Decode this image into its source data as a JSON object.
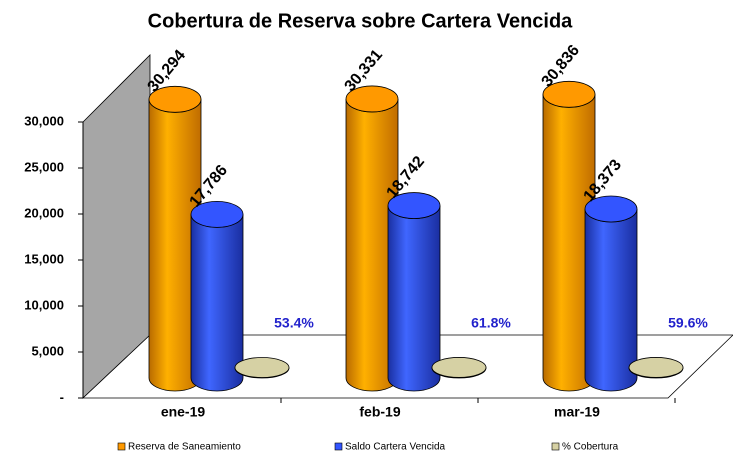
{
  "chart_data": {
    "type": "bar3d",
    "title": "Cobertura de Reserva sobre Cartera Vencida",
    "categories": [
      "ene-19",
      "feb-19",
      "mar-19"
    ],
    "series": [
      {
        "name": "Reserva de Saneamiento",
        "color": "#ff9900",
        "values": [
          30294,
          30331,
          30836
        ],
        "value_labels": [
          "30,294",
          "30,331",
          "30,836"
        ]
      },
      {
        "name": "Saldo Cartera Vencida",
        "color": "#3355ff",
        "values": [
          17786,
          18742,
          18373
        ],
        "value_labels": [
          "17,786",
          "18,742",
          "18,373"
        ]
      },
      {
        "name": "% Cobertura",
        "color": "#d6d1a4",
        "values": [
          53.4,
          61.8,
          59.6
        ],
        "value_labels": [
          "53.4%",
          "61.8%",
          "59.6%"
        ]
      }
    ],
    "ylim": [
      0,
      30000
    ],
    "yticks": [
      {
        "value": 0,
        "label": "-"
      },
      {
        "value": 5000,
        "label": "5,000"
      },
      {
        "value": 10000,
        "label": "10,000"
      },
      {
        "value": 15000,
        "label": "15,000"
      },
      {
        "value": 20000,
        "label": "20,000"
      },
      {
        "value": 25000,
        "label": "25,000"
      },
      {
        "value": 30000,
        "label": "30,000"
      }
    ],
    "legend": "bottom"
  }
}
